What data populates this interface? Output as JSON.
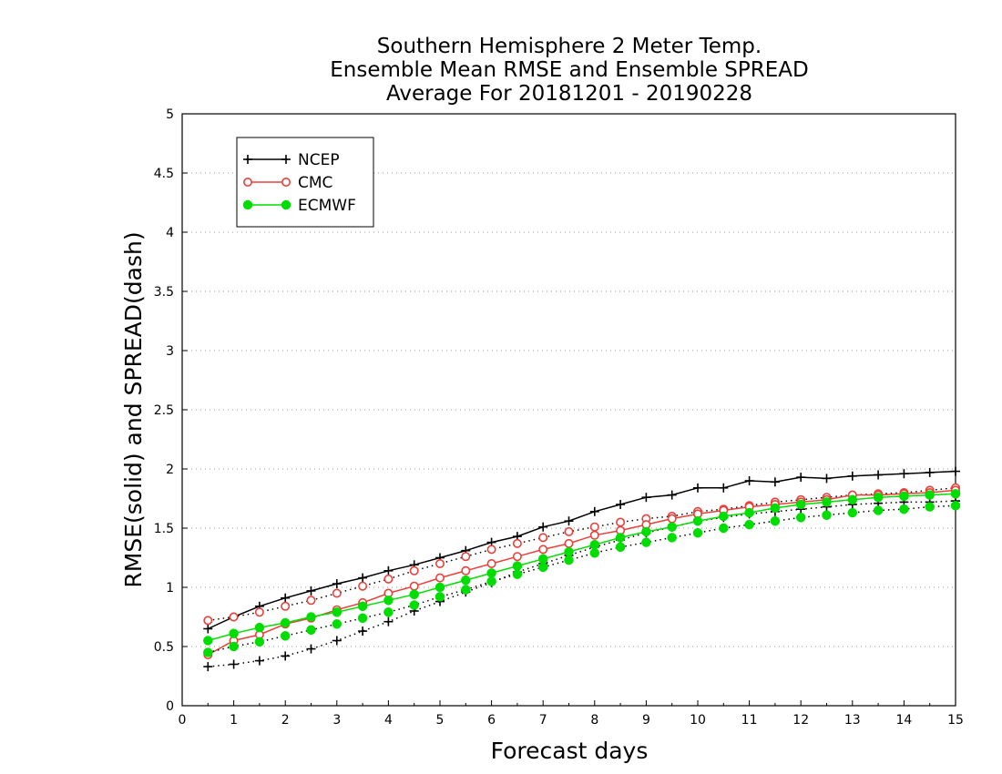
{
  "chart_data": {
    "type": "line",
    "title": [
      "Southern Hemisphere 2 Meter Temp.",
      "Ensemble Mean RMSE and Ensemble SPREAD",
      "Average For 20181201 - 20190228"
    ],
    "xlabel": "Forecast days",
    "ylabel": "RMSE(solid) and SPREAD(dash)",
    "xlim": [
      0,
      15
    ],
    "ylim": [
      0,
      5
    ],
    "x_ticks": [
      "0",
      "1",
      "2",
      "3",
      "4",
      "5",
      "6",
      "7",
      "8",
      "9",
      "10",
      "11",
      "12",
      "13",
      "14",
      "15"
    ],
    "y_ticks": [
      "0",
      "0.5",
      "1",
      "1.5",
      "2",
      "2.5",
      "3",
      "3.5",
      "4",
      "4.5",
      "5"
    ],
    "grid": "horizontal dotted",
    "legend_placement": "top-left",
    "x": [
      0.5,
      1,
      1.5,
      2,
      2.5,
      3,
      3.5,
      4,
      4.5,
      5,
      5.5,
      6,
      6.5,
      7,
      7.5,
      8,
      8.5,
      9,
      9.5,
      10,
      10.5,
      11,
      11.5,
      12,
      12.5,
      13,
      13.5,
      14,
      14.5,
      15
    ],
    "series": [
      {
        "name": "NCEP",
        "marker": "plus",
        "color": "#000000",
        "rmse": [
          0.65,
          0.75,
          0.84,
          0.91,
          0.97,
          1.03,
          1.08,
          1.14,
          1.19,
          1.25,
          1.31,
          1.38,
          1.43,
          1.51,
          1.56,
          1.64,
          1.7,
          1.76,
          1.78,
          1.84,
          1.84,
          1.9,
          1.89,
          1.93,
          1.92,
          1.94,
          1.95,
          1.96,
          1.97,
          1.98
        ],
        "spread": [
          0.33,
          0.35,
          0.38,
          0.42,
          0.48,
          0.55,
          0.63,
          0.71,
          0.8,
          0.88,
          0.96,
          1.04,
          1.13,
          1.2,
          1.27,
          1.34,
          1.4,
          1.46,
          1.51,
          1.56,
          1.59,
          1.62,
          1.64,
          1.66,
          1.68,
          1.7,
          1.71,
          1.72,
          1.72,
          1.73
        ]
      },
      {
        "name": "CMC",
        "marker": "open-circle",
        "color": "#e8403a",
        "rmse": [
          0.43,
          0.55,
          0.6,
          0.69,
          0.74,
          0.81,
          0.87,
          0.95,
          1.01,
          1.08,
          1.14,
          1.2,
          1.26,
          1.32,
          1.37,
          1.44,
          1.48,
          1.53,
          1.58,
          1.62,
          1.65,
          1.68,
          1.7,
          1.72,
          1.74,
          1.78,
          1.78,
          1.79,
          1.8,
          1.82
        ],
        "spread": [
          0.72,
          0.75,
          0.79,
          0.84,
          0.89,
          0.95,
          1.01,
          1.07,
          1.14,
          1.2,
          1.26,
          1.32,
          1.37,
          1.42,
          1.47,
          1.51,
          1.55,
          1.58,
          1.6,
          1.64,
          1.66,
          1.69,
          1.72,
          1.74,
          1.76,
          1.78,
          1.79,
          1.8,
          1.82,
          1.84
        ]
      },
      {
        "name": "ECMWF",
        "marker": "filled-circle",
        "color": "#00dd00",
        "rmse": [
          0.55,
          0.61,
          0.66,
          0.7,
          0.75,
          0.79,
          0.84,
          0.89,
          0.94,
          1.0,
          1.06,
          1.12,
          1.18,
          1.24,
          1.3,
          1.36,
          1.42,
          1.47,
          1.51,
          1.56,
          1.6,
          1.63,
          1.67,
          1.7,
          1.72,
          1.74,
          1.76,
          1.77,
          1.78,
          1.79
        ],
        "spread": [
          0.45,
          0.5,
          0.54,
          0.59,
          0.64,
          0.69,
          0.74,
          0.79,
          0.85,
          0.92,
          0.98,
          1.05,
          1.11,
          1.17,
          1.23,
          1.29,
          1.34,
          1.38,
          1.42,
          1.46,
          1.5,
          1.53,
          1.56,
          1.59,
          1.61,
          1.63,
          1.65,
          1.66,
          1.68,
          1.69
        ]
      }
    ]
  }
}
